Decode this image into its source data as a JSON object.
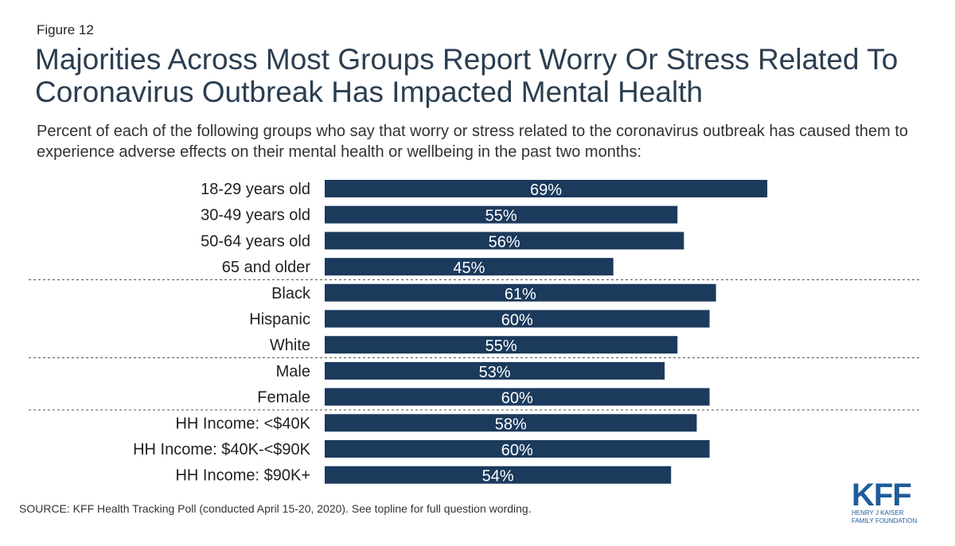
{
  "figure_label": "Figure 12",
  "source": "SOURCE: KFF Health Tracking Poll (conducted April 15-20, 2020). See topline for full question wording.",
  "logo": {
    "text": "KFF",
    "line1": "HENRY J KAISER",
    "line2": "FAMILY FOUNDATION",
    "color": "#1f5c99"
  },
  "colors": {
    "bar": "#1b3a5c",
    "title": "#2c3e50",
    "divider": "#555555"
  },
  "chart_data": {
    "type": "bar",
    "orientation": "horizontal",
    "title": "Majorities Across Most Groups Report Worry Or Stress Related To Coronavirus Outbreak Has Impacted Mental Health",
    "subtitle": "Percent of each of the following groups who say that worry or stress related to the coronavirus outbreak has caused them to experience adverse effects on their mental health or wellbeing in the past two months:",
    "xlabel": "",
    "ylabel": "",
    "xlim": [
      0,
      100
    ],
    "grid": false,
    "categories": [
      "18-29 years old",
      "30-49 years old",
      "50-64 years old",
      "65 and older",
      "Black",
      "Hispanic",
      "White",
      "Male",
      "Female",
      "HH Income: <$40K",
      "HH Income: $40K-<$90K",
      "HH Income: $90K+"
    ],
    "values": [
      69,
      55,
      56,
      45,
      61,
      60,
      55,
      53,
      60,
      58,
      60,
      54
    ],
    "value_labels": [
      "69%",
      "55%",
      "56%",
      "45%",
      "61%",
      "60%",
      "55%",
      "53%",
      "60%",
      "58%",
      "60%",
      "54%"
    ],
    "group_breaks_after": [
      3,
      6,
      8
    ]
  }
}
